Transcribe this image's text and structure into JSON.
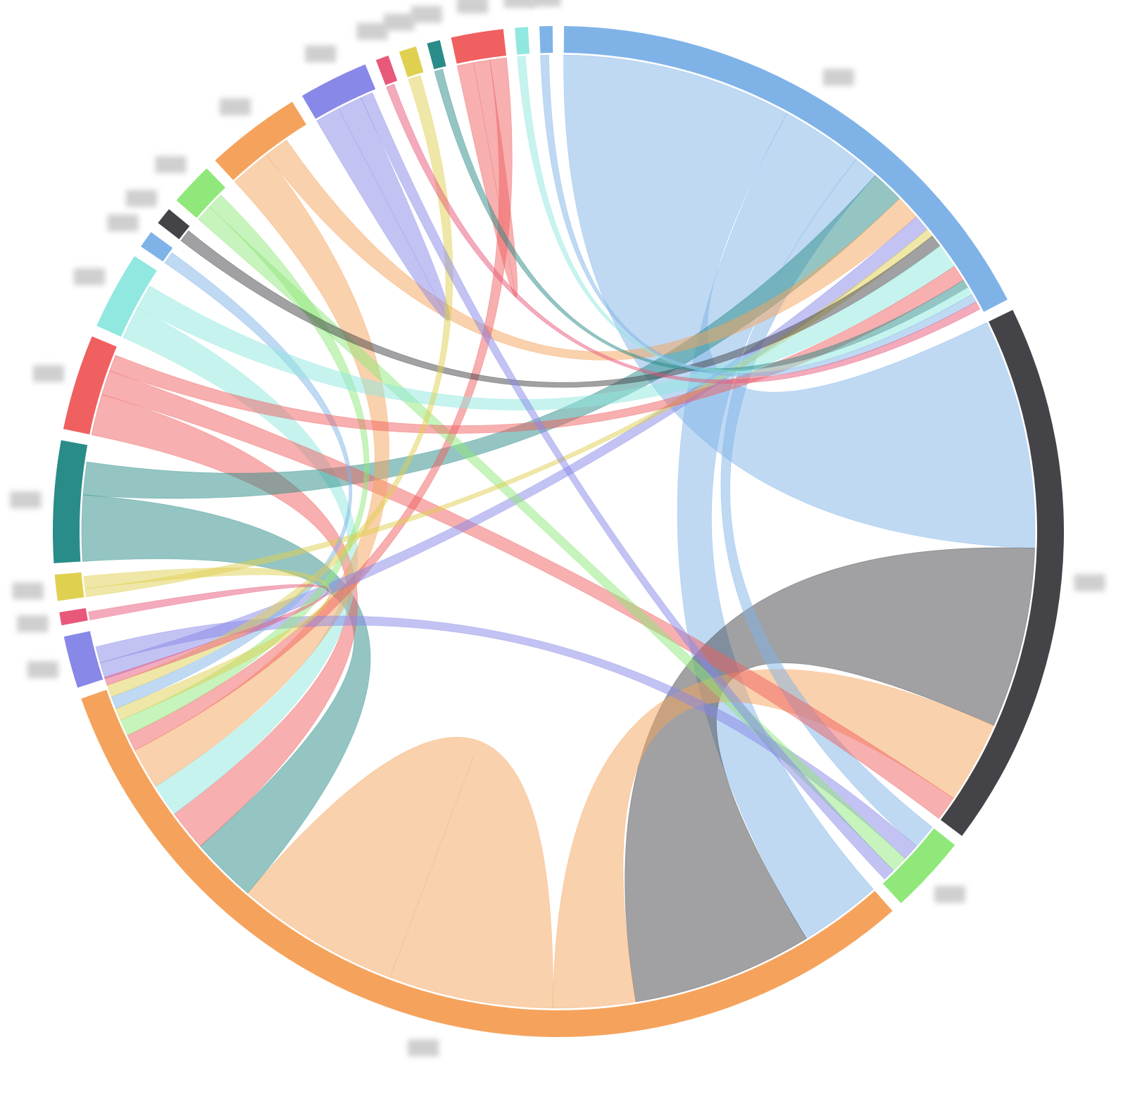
{
  "chart_data": {
    "type": "chord",
    "groups": [
      {
        "color": "#7fb3e8",
        "value": 62
      },
      {
        "color": "#444448",
        "value": 63
      },
      {
        "color": "#90e87a",
        "value": 9
      },
      {
        "color": "#f5a35c",
        "value": 112
      },
      {
        "color": "#8888e8",
        "value": 6
      },
      {
        "color": "#e8587a",
        "value": 1.5
      },
      {
        "color": "#e0d050",
        "value": 3
      },
      {
        "color": "#2a8c88",
        "value": 14
      },
      {
        "color": "#f06060",
        "value": 11
      },
      {
        "color": "#90e8e0",
        "value": 9
      },
      {
        "color": "#7fb3e8",
        "value": 2
      },
      {
        "color": "#444448",
        "value": 2
      },
      {
        "color": "#90e87a",
        "value": 5
      },
      {
        "color": "#f5a35c",
        "value": 11
      },
      {
        "color": "#8888e8",
        "value": 8
      },
      {
        "color": "#e8587a",
        "value": 1.5
      },
      {
        "color": "#e0d050",
        "value": 2
      },
      {
        "color": "#2a8c88",
        "value": 1.5
      },
      {
        "color": "#f06060",
        "value": 6
      },
      {
        "color": "#90e8e0",
        "value": 1.5
      },
      {
        "color": "#7fb3e8",
        "value": 1.5
      }
    ],
    "links": [
      {
        "source": 0,
        "target": 1,
        "value": 28
      },
      {
        "source": 0,
        "target": 3,
        "value": 10
      },
      {
        "source": 1,
        "target": 3,
        "value": 22
      },
      {
        "source": 3,
        "target": 1,
        "value": 10
      },
      {
        "source": 0,
        "target": 2,
        "value": 3
      },
      {
        "source": 3,
        "target": 3,
        "value": 20
      },
      {
        "source": 7,
        "target": 3,
        "value": 8
      },
      {
        "source": 8,
        "target": 3,
        "value": 5
      },
      {
        "source": 9,
        "target": 3,
        "value": 4
      },
      {
        "source": 7,
        "target": 0,
        "value": 4
      },
      {
        "source": 8,
        "target": 1,
        "value": 3
      },
      {
        "source": 13,
        "target": 3,
        "value": 5
      },
      {
        "source": 13,
        "target": 0,
        "value": 3
      },
      {
        "source": 14,
        "target": 14,
        "value": 3
      },
      {
        "source": 18,
        "target": 18,
        "value": 2
      },
      {
        "source": 18,
        "target": 3,
        "value": 2
      },
      {
        "source": 4,
        "target": 0,
        "value": 2
      },
      {
        "source": 4,
        "target": 2,
        "value": 2
      },
      {
        "source": 12,
        "target": 2,
        "value": 2
      },
      {
        "source": 12,
        "target": 3,
        "value": 2
      },
      {
        "source": 6,
        "target": 0,
        "value": 1
      },
      {
        "source": 6,
        "target": 3,
        "value": 1.5
      },
      {
        "source": 11,
        "target": 0,
        "value": 1.5
      },
      {
        "source": 10,
        "target": 3,
        "value": 1.5
      },
      {
        "source": 9,
        "target": 0,
        "value": 3
      },
      {
        "source": 8,
        "target": 0,
        "value": 2
      },
      {
        "source": 16,
        "target": 3,
        "value": 1.5
      },
      {
        "source": 17,
        "target": 0,
        "value": 1
      },
      {
        "source": 19,
        "target": 0,
        "value": 1
      },
      {
        "source": 20,
        "target": 0,
        "value": 1
      },
      {
        "source": 5,
        "target": 3,
        "value": 1
      },
      {
        "source": 15,
        "target": 0,
        "value": 1
      },
      {
        "source": 14,
        "target": 2,
        "value": 1.5
      }
    ]
  }
}
